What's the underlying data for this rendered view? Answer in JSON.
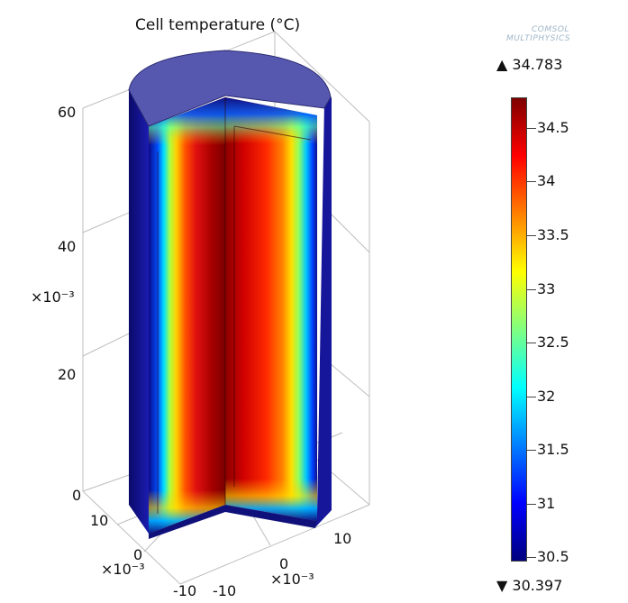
{
  "plot": {
    "title": "Cell temperature (°C)",
    "logo_lines": [
      "COMSOL",
      "MULTIPHYSICS"
    ],
    "z_ticks": [
      "60",
      "40",
      "20",
      "0"
    ],
    "z_exponent": "×10⁻³",
    "x_ticks": [
      "10",
      "0",
      "-10"
    ],
    "x_exponent": "×10⁻³",
    "y_ticks": [
      "-10",
      "0",
      "10"
    ],
    "y_exponent": "×10⁻³"
  },
  "colorbar": {
    "max_label": "▲ 34.783",
    "min_label": "▼ 30.397",
    "ticks": [
      "34.5",
      "34",
      "33.5",
      "33",
      "32.5",
      "32",
      "31.5",
      "31",
      "30.5"
    ],
    "colors": [
      "#00007f",
      "#0000ff",
      "#0080ff",
      "#00ffff",
      "#80ff80",
      "#ffff00",
      "#ff8000",
      "#ff0000",
      "#7f0000"
    ]
  }
}
